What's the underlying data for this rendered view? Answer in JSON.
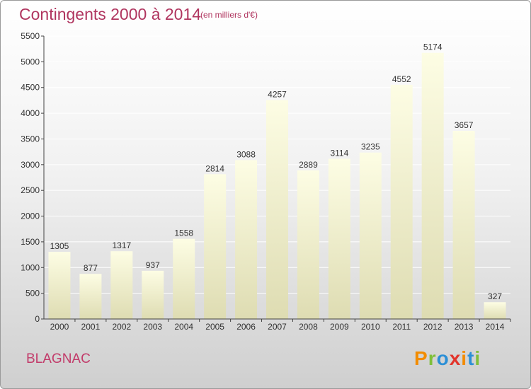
{
  "title": "Contingents 2000 à 2014",
  "subtitle": "(en milliers d'€)",
  "commune": "BLAGNAC",
  "brand": {
    "text": "Proxiti",
    "letters": [
      "P",
      "r",
      "o",
      "x",
      "i",
      "t",
      "i"
    ],
    "colors": [
      "#f28c00",
      "#7fbf3a",
      "#2b8fd6",
      "#e2342b",
      "#f28c00",
      "#2b8fd6",
      "#7fbf3a"
    ]
  },
  "colors": {
    "title": "#b0355f",
    "bar_top": "#fdfde4",
    "bar_bottom": "#dedcb2",
    "axis": "#444444",
    "grid": "#ffffff"
  },
  "chart_data": {
    "type": "bar",
    "title": "Contingents 2000 à 2014",
    "subtitle": "(en milliers d'€)",
    "categories": [
      "2000",
      "2001",
      "2002",
      "2003",
      "2004",
      "2005",
      "2006",
      "2007",
      "2008",
      "2009",
      "2010",
      "2011",
      "2012",
      "2013",
      "2014"
    ],
    "values": [
      1305,
      877,
      1317,
      937,
      1558,
      2814,
      3088,
      4257,
      2889,
      3114,
      3235,
      4552,
      5174,
      3657,
      327
    ],
    "ylim": [
      0,
      5500
    ],
    "yticks": [
      0,
      500,
      1000,
      1500,
      2000,
      2500,
      3000,
      3500,
      4000,
      4500,
      5000,
      5500
    ],
    "grid": true,
    "data_labels": true
  }
}
